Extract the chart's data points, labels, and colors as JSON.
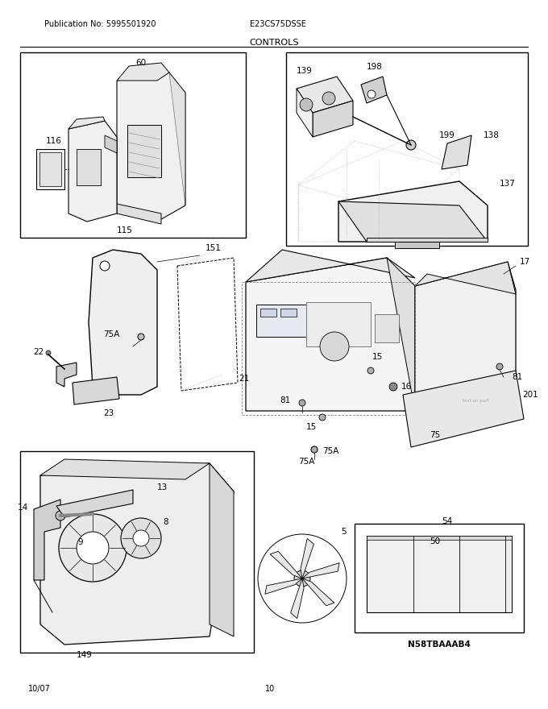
{
  "pub_no": "Publication No: 5995501920",
  "model": "E23CS75DSSE",
  "title": "CONTROLS",
  "date": "10/07",
  "page": "10",
  "bg_color": "#ffffff",
  "fig_width": 6.8,
  "fig_height": 8.8,
  "dpi": 100,
  "header_fontsize": 7,
  "title_fontsize": 8,
  "label_fontsize": 7.5,
  "footer_fontsize": 7
}
